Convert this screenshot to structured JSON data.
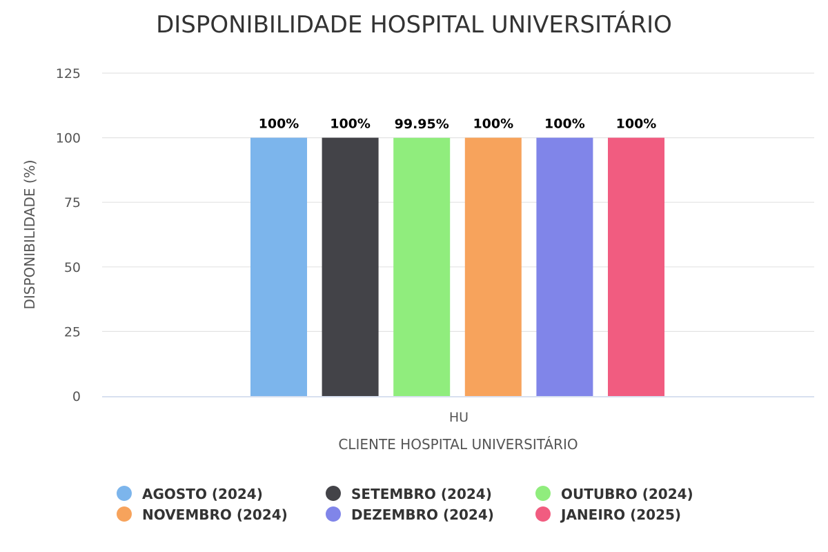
{
  "chart_data": {
    "type": "bar",
    "title": "DISPONIBILIDADE HOSPITAL UNIVERSITÁRIO",
    "xlabel": "CLIENTE HOSPITAL UNIVERSITÁRIO",
    "ylabel": "DISPONIBILIDADE (%)",
    "categories": [
      "HU"
    ],
    "ylim": [
      0,
      125
    ],
    "yticks": [
      0,
      25,
      50,
      75,
      100,
      125
    ],
    "grid": true,
    "legend_position": "bottom",
    "series": [
      {
        "name": "AGOSTO (2024)",
        "values": [
          100
        ],
        "label": "100%",
        "color": "#7cb5ec"
      },
      {
        "name": "SETEMBRO (2024)",
        "values": [
          100
        ],
        "label": "100%",
        "color": "#434348"
      },
      {
        "name": "OUTUBRO (2024)",
        "values": [
          99.95
        ],
        "label": "99.95%",
        "color": "#90ed7d"
      },
      {
        "name": "NOVEMBRO (2024)",
        "values": [
          100
        ],
        "label": "100%",
        "color": "#f7a35c"
      },
      {
        "name": "DEZEMBRO (2024)",
        "values": [
          100
        ],
        "label": "100%",
        "color": "#8085e9"
      },
      {
        "name": "JANEIRO (2025)",
        "values": [
          100
        ],
        "label": "100%",
        "color": "#f15c80"
      }
    ]
  }
}
